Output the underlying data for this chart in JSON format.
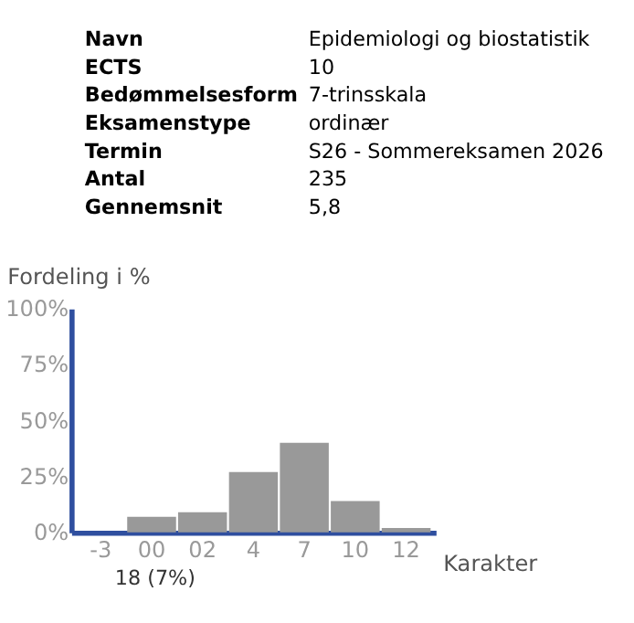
{
  "chart_data": {
    "type": "bar",
    "annotations": [
      "Navn",
      "Epidemiologi og biostatistik",
      "ECTS",
      "10",
      "Bedømmelsesform",
      "7-trinsskala",
      "Eksamenstype",
      "ordinær",
      "Termin",
      "S26 - Sommereksamen 2026",
      "Antal",
      "235",
      "Gennemsnit",
      "5,8",
      "18 (7%)"
    ],
    "ylabel": "Fordeling i %",
    "xlabel": "Karakter",
    "categories": [
      "-3",
      "00",
      "02",
      "4",
      "7",
      "10",
      "12"
    ],
    "values": [
      0,
      7,
      9,
      27,
      40,
      14,
      2
    ],
    "color": "#999999",
    "ylim": [
      0,
      100
    ],
    "yticks": [
      {
        "value": 0,
        "label": "0%"
      },
      {
        "value": 25,
        "label": "25%"
      },
      {
        "value": 50,
        "label": "50%"
      },
      {
        "value": 75,
        "label": "75%"
      },
      {
        "value": 100,
        "label": "100%"
      }
    ],
    "grid": false
  }
}
